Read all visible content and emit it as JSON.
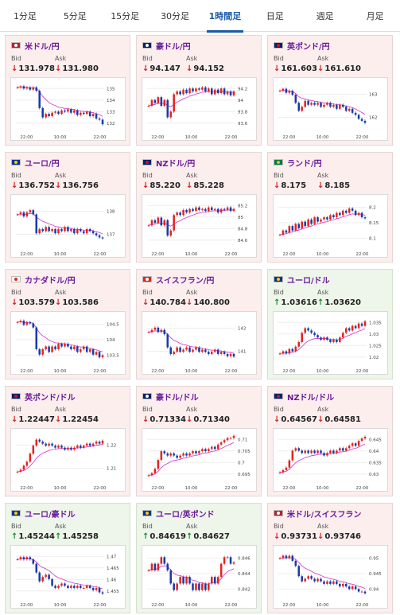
{
  "tabs": [
    {
      "label": "1分足",
      "active": false
    },
    {
      "label": "5分足",
      "active": false
    },
    {
      "label": "15分足",
      "active": false
    },
    {
      "label": "30分足",
      "active": false
    },
    {
      "label": "1時間足",
      "active": true
    },
    {
      "label": "日足",
      "active": false
    },
    {
      "label": "週足",
      "active": false
    },
    {
      "label": "月足",
      "active": false
    }
  ],
  "labels": {
    "bid": "Bid",
    "ask": "Ask"
  },
  "colors": {
    "up": "#1e8a2e",
    "down": "#d21f1f",
    "ma": "#cc33cc",
    "ma2": "#3388ee",
    "candle_up": "#e62222",
    "candle_down": "#1a3aa8"
  },
  "cards": [
    {
      "pair": "米ドル/円",
      "flag_icon": "us-jp-flag-icon",
      "dir": "down",
      "bid": "131.978",
      "ask": "131.980",
      "yticks": [
        "135",
        "134",
        "133",
        "132"
      ],
      "xticks": [
        "22:00",
        "10:00",
        "22:00"
      ],
      "chart_data": {
        "type": "candlestick",
        "ylim": [
          131.6,
          135.6
        ],
        "closes": [
          135.2,
          135.3,
          135.1,
          135.2,
          135.0,
          135.2,
          134.9,
          133.4,
          132.6,
          132.9,
          132.7,
          133.0,
          133.1,
          132.9,
          133.2,
          133.1,
          133.3,
          133.0,
          133.2,
          132.8,
          133.0,
          132.9,
          133.1,
          132.7,
          132.9,
          132.5,
          132.4,
          132.0
        ]
      }
    },
    {
      "pair": "豪ドル/円",
      "flag_icon": "au-jp-flag-icon",
      "dir": "down",
      "bid": "94.147",
      "ask": "94.152",
      "yticks": [
        "94.2",
        "94",
        "93.8",
        "93.6"
      ],
      "xticks": [
        "22:00",
        "10:00",
        "22:00"
      ],
      "chart_data": {
        "type": "candlestick",
        "ylim": [
          93.5,
          94.3
        ],
        "closes": [
          93.9,
          94.0,
          93.95,
          94.05,
          93.9,
          94.0,
          93.7,
          93.8,
          94.1,
          94.15,
          94.1,
          94.18,
          94.12,
          94.2,
          94.15,
          94.2,
          94.18,
          94.22,
          94.15,
          94.2,
          94.1,
          94.18,
          94.12,
          94.2,
          94.1,
          94.15,
          94.08,
          94.15
        ]
      }
    },
    {
      "pair": "英ポンド/円",
      "flag_icon": "gb-jp-flag-icon",
      "dir": "down",
      "bid": "161.603",
      "ask": "161.610",
      "yticks": [
        "163",
        "162"
      ],
      "xticks": [
        "22:00",
        "10:00",
        "22:00"
      ],
      "chart_data": {
        "type": "candlestick",
        "ylim": [
          161.3,
          163.6
        ],
        "closes": [
          163.2,
          163.3,
          163.1,
          163.2,
          163.0,
          162.6,
          162.2,
          162.4,
          162.7,
          162.5,
          162.6,
          162.5,
          162.6,
          162.4,
          162.5,
          162.6,
          162.4,
          162.5,
          162.3,
          162.5,
          162.4,
          162.2,
          162.3,
          162.1,
          162.0,
          161.8,
          161.7,
          161.6
        ]
      }
    },
    {
      "pair": "ユーロ/円",
      "flag_icon": "eu-jp-flag-icon",
      "dir": "down",
      "bid": "136.752",
      "ask": "136.756",
      "yticks": [
        "138",
        "137"
      ],
      "xticks": [
        "22:00",
        "10:00",
        "22:00"
      ],
      "chart_data": {
        "type": "candlestick",
        "ylim": [
          136.4,
          138.6
        ],
        "closes": [
          137.9,
          138.0,
          137.8,
          138.0,
          138.1,
          137.9,
          137.0,
          137.2,
          137.1,
          137.3,
          137.1,
          137.2,
          137.0,
          137.2,
          137.1,
          137.3,
          137.1,
          137.2,
          137.0,
          137.2,
          137.1,
          137.0,
          137.2,
          137.1,
          137.0,
          136.9,
          136.8,
          136.75
        ]
      }
    },
    {
      "pair": "NZドル/円",
      "flag_icon": "nz-jp-flag-icon",
      "dir": "down",
      "bid": "85.220",
      "ask": "85.228",
      "yticks": [
        "85.2",
        "85",
        "84.8",
        "84.6"
      ],
      "xticks": [
        "22:00",
        "10:00",
        "22:00"
      ],
      "chart_data": {
        "type": "candlestick",
        "ylim": [
          84.5,
          85.4
        ],
        "closes": [
          84.9,
          85.0,
          84.95,
          85.05,
          84.9,
          85.0,
          84.7,
          84.8,
          85.1,
          85.15,
          85.1,
          85.2,
          85.15,
          85.22,
          85.18,
          85.25,
          85.2,
          85.22,
          85.18,
          85.25,
          85.2,
          85.22,
          85.15,
          85.22,
          85.2,
          85.25,
          85.18,
          85.22
        ]
      }
    },
    {
      "pair": "ランド/円",
      "flag_icon": "za-jp-flag-icon",
      "dir": "down",
      "bid": "8.175",
      "ask": "8.185",
      "yticks": [
        "8.2",
        "8.15",
        "8.1"
      ],
      "xticks": [
        "22:00",
        "10:00",
        "22:00"
      ],
      "chart_data": {
        "type": "candlestick",
        "ylim": [
          8.05,
          8.26
        ],
        "closes": [
          8.1,
          8.12,
          8.11,
          8.14,
          8.12,
          8.15,
          8.13,
          8.16,
          8.14,
          8.17,
          8.15,
          8.18,
          8.16,
          8.17,
          8.18,
          8.17,
          8.19,
          8.18,
          8.2,
          8.19,
          8.21,
          8.2,
          8.22,
          8.21,
          8.19,
          8.2,
          8.18,
          8.175
        ]
      }
    },
    {
      "pair": "カナダドル/円",
      "flag_icon": "ca-jp-flag-icon",
      "dir": "down",
      "bid": "103.579",
      "ask": "103.586",
      "yticks": [
        "104.5",
        "104",
        "103.5"
      ],
      "xticks": [
        "22:00",
        "10:00",
        "22:00"
      ],
      "chart_data": {
        "type": "candlestick",
        "ylim": [
          103.3,
          105.0
        ],
        "closes": [
          104.8,
          104.85,
          104.7,
          104.8,
          104.75,
          104.6,
          103.8,
          103.6,
          103.8,
          103.9,
          103.7,
          103.9,
          103.8,
          104.0,
          103.9,
          104.0,
          103.9,
          103.8,
          103.9,
          103.7,
          103.8,
          103.9,
          103.7,
          103.8,
          103.6,
          103.7,
          103.5,
          103.58
        ]
      }
    },
    {
      "pair": "スイスフラン/円",
      "flag_icon": "ch-jp-flag-icon",
      "dir": "down",
      "bid": "140.784",
      "ask": "140.800",
      "yticks": [
        "142",
        "141"
      ],
      "xticks": [
        "22:00",
        "10:00",
        "22:00"
      ],
      "chart_data": {
        "type": "candlestick",
        "ylim": [
          140.5,
          142.6
        ],
        "closes": [
          141.9,
          142.0,
          142.1,
          141.9,
          142.0,
          141.8,
          141.2,
          140.9,
          141.0,
          141.2,
          141.0,
          141.1,
          141.2,
          141.0,
          141.1,
          141.2,
          141.0,
          141.1,
          141.0,
          140.9,
          141.0,
          141.1,
          140.9,
          141.0,
          140.9,
          140.8,
          140.9,
          140.78
        ]
      }
    },
    {
      "pair": "ユーロ/ドル",
      "flag_icon": "eu-us-flag-icon",
      "dir": "up",
      "bid": "1.03616",
      "ask": "1.03620",
      "yticks": [
        "1.035",
        "1.03",
        "1.025",
        "1.02"
      ],
      "xticks": [
        "22:00",
        "10:00",
        "22:00"
      ],
      "chart_data": {
        "type": "candlestick",
        "ylim": [
          1.018,
          1.038
        ],
        "closes": [
          1.022,
          1.023,
          1.022,
          1.024,
          1.023,
          1.025,
          1.027,
          1.031,
          1.033,
          1.032,
          1.031,
          1.03,
          1.029,
          1.028,
          1.029,
          1.028,
          1.027,
          1.028,
          1.027,
          1.029,
          1.031,
          1.033,
          1.032,
          1.034,
          1.033,
          1.035,
          1.034,
          1.036
        ]
      }
    },
    {
      "pair": "英ポンド/ドル",
      "flag_icon": "gb-us-flag-icon",
      "dir": "down",
      "bid": "1.22447",
      "ask": "1.22454",
      "yticks": [
        "1.22",
        "1.21"
      ],
      "xticks": [
        "22:00",
        "10:00",
        "22:00"
      ],
      "chart_data": {
        "type": "candlestick",
        "ylim": [
          1.205,
          1.228
        ],
        "closes": [
          1.209,
          1.21,
          1.212,
          1.214,
          1.218,
          1.222,
          1.225,
          1.224,
          1.223,
          1.222,
          1.223,
          1.222,
          1.221,
          1.222,
          1.221,
          1.22,
          1.221,
          1.22,
          1.221,
          1.222,
          1.221,
          1.222,
          1.223,
          1.222,
          1.223,
          1.224,
          1.223,
          1.2245
        ]
      }
    },
    {
      "pair": "豪ドル/ドル",
      "flag_icon": "au-us-flag-icon",
      "dir": "down",
      "bid": "0.71334",
      "ask": "0.71340",
      "yticks": [
        "0.71",
        "0.705",
        "0.7",
        "0.695"
      ],
      "xticks": [
        "22:00",
        "10:00",
        "22:00"
      ],
      "chart_data": {
        "type": "candlestick",
        "ylim": [
          0.693,
          0.714
        ],
        "closes": [
          0.695,
          0.696,
          0.698,
          0.702,
          0.706,
          0.705,
          0.704,
          0.705,
          0.704,
          0.703,
          0.704,
          0.705,
          0.704,
          0.705,
          0.706,
          0.705,
          0.706,
          0.707,
          0.706,
          0.707,
          0.708,
          0.707,
          0.709,
          0.71,
          0.711,
          0.712,
          0.712,
          0.713
        ]
      }
    },
    {
      "pair": "NZドル/ドル",
      "flag_icon": "nz-us-flag-icon",
      "dir": "down",
      "bid": "0.64567",
      "ask": "0.64581",
      "yticks": [
        "0.645",
        "0.64",
        "0.635",
        "0.63"
      ],
      "xticks": [
        "22:00",
        "10:00",
        "22:00"
      ],
      "chart_data": {
        "type": "candlestick",
        "ylim": [
          0.628,
          0.647
        ],
        "closes": [
          0.631,
          0.632,
          0.633,
          0.636,
          0.64,
          0.641,
          0.64,
          0.639,
          0.64,
          0.639,
          0.64,
          0.639,
          0.64,
          0.639,
          0.638,
          0.639,
          0.64,
          0.639,
          0.64,
          0.641,
          0.64,
          0.641,
          0.642,
          0.643,
          0.642,
          0.644,
          0.645,
          0.6457
        ]
      }
    },
    {
      "pair": "ユーロ/豪ドル",
      "flag_icon": "eu-au-flag-icon",
      "dir": "up",
      "bid": "1.45244",
      "ask": "1.45258",
      "yticks": [
        "1.47",
        "1.465",
        "1.46",
        "1.455"
      ],
      "xticks": [
        "22:00",
        "10:00",
        "22:00"
      ],
      "chart_data": {
        "type": "candlestick",
        "ylim": [
          1.451,
          1.472
        ],
        "closes": [
          1.468,
          1.469,
          1.468,
          1.469,
          1.468,
          1.466,
          1.462,
          1.458,
          1.46,
          1.461,
          1.459,
          1.456,
          1.455,
          1.456,
          1.457,
          1.456,
          1.455,
          1.456,
          1.455,
          1.456,
          1.455,
          1.455,
          1.456,
          1.455,
          1.454,
          1.455,
          1.453,
          1.4524
        ]
      }
    },
    {
      "pair": "ユーロ/英ポンド",
      "flag_icon": "eu-gb-flag-icon",
      "dir": "up",
      "bid": "0.84619",
      "ask": "0.84627",
      "yticks": [
        "0.846",
        "0.844",
        "0.842"
      ],
      "xticks": [
        "22:00",
        "10:00",
        "22:00"
      ],
      "chart_data": {
        "type": "candlestick",
        "ylim": [
          0.841,
          0.848
        ],
        "closes": [
          0.845,
          0.846,
          0.845,
          0.846,
          0.847,
          0.846,
          0.845,
          0.843,
          0.842,
          0.843,
          0.844,
          0.843,
          0.844,
          0.843,
          0.842,
          0.843,
          0.842,
          0.843,
          0.842,
          0.843,
          0.844,
          0.843,
          0.844,
          0.846,
          0.847,
          0.847,
          0.846,
          0.8462
        ]
      }
    },
    {
      "pair": "米ドル/スイスフラン",
      "flag_icon": "us-ch-flag-icon",
      "dir": "down",
      "bid": "0.93731",
      "ask": "0.93746",
      "yticks": [
        "0.95",
        "0.945",
        "0.94"
      ],
      "xticks": [
        "22:00",
        "10:00",
        "22:00"
      ],
      "chart_data": {
        "type": "candlestick",
        "ylim": [
          0.936,
          0.954
        ],
        "closes": [
          0.951,
          0.952,
          0.951,
          0.952,
          0.95,
          0.948,
          0.944,
          0.942,
          0.943,
          0.944,
          0.943,
          0.942,
          0.943,
          0.942,
          0.941,
          0.942,
          0.941,
          0.942,
          0.941,
          0.94,
          0.941,
          0.94,
          0.939,
          0.94,
          0.939,
          0.938,
          0.938,
          0.9373
        ]
      }
    }
  ]
}
